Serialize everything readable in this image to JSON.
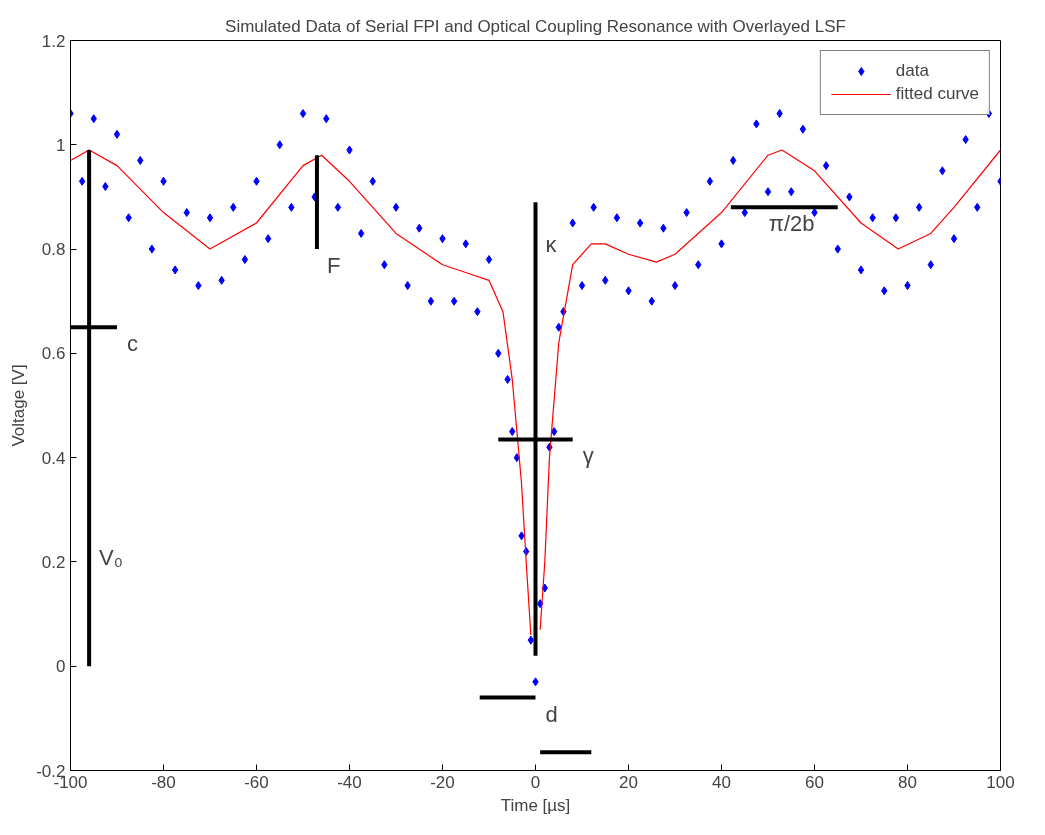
{
  "chart_data": {
    "type": "scatter",
    "title": "Simulated Data of Serial FPI and Optical Coupling Resonance with Overlayed LSF",
    "xlabel": "Time [µs]",
    "ylabel": "Voltage [V]",
    "xlim": [
      -100,
      100
    ],
    "ylim": [
      -0.2,
      1.2
    ],
    "xticks": [
      -100,
      -80,
      -60,
      -40,
      -20,
      0,
      20,
      40,
      60,
      80,
      100
    ],
    "yticks": [
      -0.2,
      0,
      0.2,
      0.4,
      0.6,
      0.8,
      1,
      1.2
    ],
    "grid": false,
    "legend": "top right",
    "series": [
      {
        "name": "data",
        "marker": "diamond",
        "color": "#0000ff",
        "x": [
          -100,
          -97.5,
          -95,
          -92.5,
          -90,
          -87.5,
          -85,
          -82.5,
          -80,
          -77.5,
          -75,
          -72.5,
          -70,
          -67.5,
          -65,
          -62.5,
          -60,
          -57.5,
          -55,
          -52.5,
          -50,
          -47.5,
          -45,
          -42.5,
          -40,
          -37.5,
          -35,
          -32.5,
          -30,
          -27.5,
          -25,
          -22.5,
          -20,
          -17.5,
          -15,
          -12.5,
          -10,
          -8,
          -6,
          -5,
          -4,
          -3,
          -2,
          -1,
          0,
          1,
          2,
          3,
          4,
          5,
          6,
          8,
          10,
          12.5,
          15,
          17.5,
          20,
          22.5,
          25,
          27.5,
          30,
          32.5,
          35,
          37.5,
          40,
          42.5,
          45,
          47.5,
          50,
          52.5,
          55,
          57.5,
          60,
          62.5,
          65,
          67.5,
          70,
          72.5,
          75,
          77.5,
          80,
          82.5,
          85,
          87.5,
          90,
          92.5,
          95,
          97.5,
          100
        ],
        "values": [
          1.06,
          0.93,
          1.05,
          0.92,
          1.02,
          0.86,
          0.97,
          0.8,
          0.93,
          0.76,
          0.87,
          0.73,
          0.86,
          0.74,
          0.88,
          0.78,
          0.93,
          0.82,
          1.0,
          0.88,
          1.06,
          0.9,
          1.05,
          0.88,
          0.99,
          0.83,
          0.93,
          0.77,
          0.88,
          0.73,
          0.84,
          0.7,
          0.82,
          0.7,
          0.81,
          0.68,
          0.78,
          0.6,
          0.55,
          0.45,
          0.4,
          0.25,
          0.22,
          0.05,
          -0.03,
          0.12,
          0.15,
          0.42,
          0.45,
          0.65,
          0.68,
          0.85,
          0.73,
          0.88,
          0.74,
          0.86,
          0.72,
          0.85,
          0.7,
          0.84,
          0.73,
          0.87,
          0.77,
          0.93,
          0.81,
          0.97,
          0.87,
          1.04,
          0.91,
          1.06,
          0.91,
          1.03,
          0.87,
          0.96,
          0.8,
          0.9,
          0.76,
          0.86,
          0.72,
          0.86,
          0.73,
          0.88,
          0.77,
          0.95,
          0.82,
          1.01,
          0.88,
          1.06,
          0.93
        ]
      },
      {
        "name": "fitted curve",
        "type": "line",
        "color": "#ff0000",
        "x": [
          -100,
          -96,
          -90,
          -80,
          -70,
          -60,
          -50,
          -46,
          -40,
          -30,
          -20,
          -15,
          -10,
          -7,
          -5,
          -3,
          -2,
          -1,
          0,
          1,
          2,
          3,
          5,
          8,
          12,
          15,
          20,
          26,
          30,
          40,
          50,
          53,
          60,
          70,
          78,
          85,
          90,
          100
        ],
        "values": [
          0.97,
          0.99,
          0.96,
          0.87,
          0.8,
          0.85,
          0.96,
          0.98,
          0.93,
          0.83,
          0.77,
          0.755,
          0.74,
          0.68,
          0.55,
          0.35,
          0.2,
          0.06,
          null,
          0.07,
          0.2,
          0.4,
          0.62,
          0.77,
          0.81,
          0.81,
          0.79,
          0.775,
          0.79,
          0.87,
          0.98,
          0.99,
          0.95,
          0.85,
          0.8,
          0.83,
          0.88,
          0.99
        ]
      },
      {
        "type": "line",
        "color": "#000000",
        "x": [
          -96,
          -96
        ],
        "values": [
          0,
          0.99
        ]
      },
      {
        "type": "line",
        "color": "#000000",
        "x": [
          -100,
          -90
        ],
        "values": [
          0.65,
          0.65
        ]
      },
      {
        "type": "line",
        "color": "#000000",
        "x": [
          -47,
          -47
        ],
        "values": [
          0.98,
          0.8
        ]
      },
      {
        "type": "line",
        "color": "#000000",
        "x": [
          0,
          0
        ],
        "values": [
          0.89,
          0.02
        ]
      },
      {
        "type": "line",
        "color": "#000000",
        "x": [
          -8,
          8
        ],
        "values": [
          0.435,
          0.435
        ]
      },
      {
        "type": "line",
        "color": "#000000",
        "x": [
          -12,
          0
        ],
        "values": [
          -0.06,
          -0.06
        ]
      },
      {
        "type": "line",
        "color": "#000000",
        "x": [
          1,
          12
        ],
        "values": [
          -0.165,
          -0.165
        ]
      },
      {
        "type": "line",
        "color": "#000000",
        "x": [
          42,
          65
        ],
        "values": [
          0.88,
          0.88
        ]
      }
    ],
    "annotations": [
      {
        "text": "c",
        "x": -90,
        "y": 0.65
      },
      {
        "text": "F",
        "x": -47,
        "y": 0.8
      },
      {
        "text": "κ",
        "x": 0,
        "y": 0.84
      },
      {
        "text": "γ",
        "x": 8,
        "y": 0.435
      },
      {
        "text": "d",
        "x": 0,
        "y": -0.06
      },
      {
        "text": "V₀",
        "x": -96,
        "y": 0.24
      },
      {
        "text": "π/2b",
        "x": 48,
        "y": 0.88
      }
    ]
  }
}
